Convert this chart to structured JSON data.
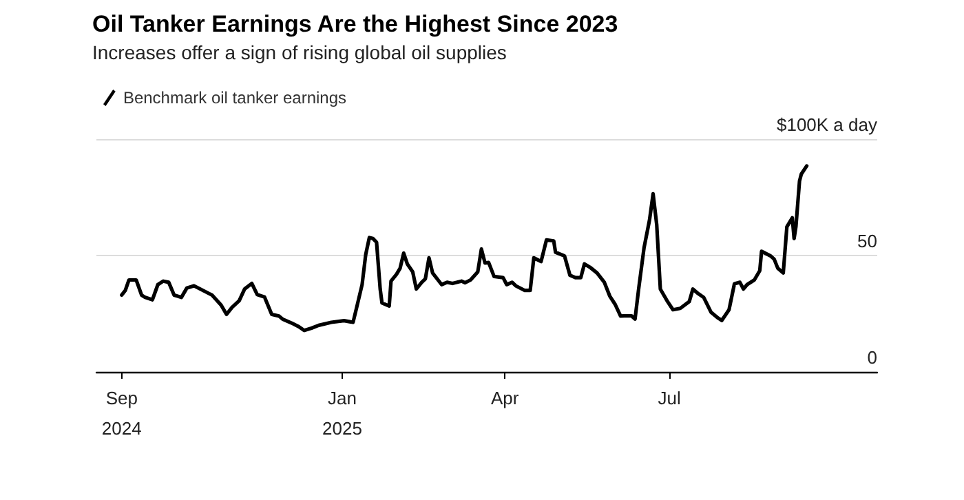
{
  "chart_data": {
    "type": "line",
    "title": "Oil Tanker Earnings Are the Highest Since 2023",
    "subtitle": "Increases offer a sign of rising global oil supplies",
    "x": [
      "2024-09-01",
      "2024-09-03",
      "2024-09-05",
      "2024-09-09",
      "2024-09-12",
      "2024-09-14",
      "2024-09-18",
      "2024-09-21",
      "2024-09-24",
      "2024-09-27",
      "2024-09-30",
      "2024-10-04",
      "2024-10-07",
      "2024-10-11",
      "2024-10-16",
      "2024-10-21",
      "2024-10-26",
      "2024-10-29",
      "2024-11-01",
      "2024-11-05",
      "2024-11-08",
      "2024-11-12",
      "2024-11-15",
      "2024-11-19",
      "2024-11-23",
      "2024-11-27",
      "2024-11-29",
      "2024-12-04",
      "2024-12-08",
      "2024-12-11",
      "2024-12-15",
      "2024-12-19",
      "2024-12-26",
      "2025-01-02",
      "2025-01-07",
      "2025-01-09",
      "2025-01-12",
      "2025-01-14",
      "2025-01-16",
      "2025-01-18",
      "2025-01-20",
      "2025-01-22",
      "2025-01-23",
      "2025-01-27",
      "2025-01-28",
      "2025-01-31",
      "2025-02-02",
      "2025-02-04",
      "2025-02-06",
      "2025-02-09",
      "2025-02-11",
      "2025-02-14",
      "2025-02-16",
      "2025-02-18",
      "2025-02-20",
      "2025-02-25",
      "2025-02-28",
      "2025-03-03",
      "2025-03-08",
      "2025-03-10",
      "2025-03-13",
      "2025-03-17",
      "2025-03-19",
      "2025-03-21",
      "2025-03-23",
      "2025-03-26",
      "2025-03-31",
      "2025-04-02",
      "2025-04-05",
      "2025-04-07",
      "2025-04-12",
      "2025-04-15",
      "2025-04-17",
      "2025-04-20",
      "2025-04-21",
      "2025-04-24",
      "2025-04-28",
      "2025-04-29",
      "2025-05-04",
      "2025-05-07",
      "2025-05-10",
      "2025-05-13",
      "2025-05-15",
      "2025-05-18",
      "2025-05-22",
      "2025-05-26",
      "2025-05-29",
      "2025-06-01",
      "2025-06-04",
      "2025-06-06",
      "2025-06-10",
      "2025-06-12",
      "2025-06-14",
      "2025-06-17",
      "2025-06-20",
      "2025-06-22",
      "2025-06-24",
      "2025-06-26",
      "2025-06-30",
      "2025-07-03",
      "2025-07-07",
      "2025-07-12",
      "2025-07-14",
      "2025-07-17",
      "2025-07-20",
      "2025-07-24",
      "2025-07-28",
      "2025-07-30",
      "2025-08-03",
      "2025-08-06",
      "2025-08-09",
      "2025-08-11",
      "2025-08-13",
      "2025-08-17",
      "2025-08-20",
      "2025-08-21",
      "2025-08-26",
      "2025-08-28",
      "2025-08-30",
      "2025-09-02",
      "2025-09-04",
      "2025-09-07",
      "2025-09-08",
      "2025-09-09",
      "2025-09-11",
      "2025-09-12",
      "2025-09-15"
    ],
    "series": [
      {
        "name": "Benchmark oil tanker earnings",
        "color": "#000000",
        "values": [
          33,
          35,
          39.5,
          39.5,
          33,
          32,
          31,
          37.5,
          39,
          38.5,
          33,
          32,
          36,
          37,
          35,
          33,
          28.7,
          24.7,
          27.7,
          30.6,
          35.6,
          38,
          33.2,
          32.2,
          24.7,
          24,
          22.7,
          21,
          19.4,
          17.8,
          18.8,
          20,
          21.3,
          22,
          21.3,
          27.7,
          37.5,
          50.4,
          57.7,
          57.3,
          55.7,
          35.6,
          29.6,
          28.3,
          39,
          41.9,
          44.5,
          51,
          46.4,
          43,
          35.6,
          38.5,
          40,
          49,
          42.5,
          37.5,
          38.5,
          38,
          39,
          38.3,
          39.5,
          43,
          52.8,
          46.8,
          47,
          41,
          40.5,
          37.5,
          38.5,
          37,
          35,
          35,
          49,
          47.8,
          47.4,
          56.7,
          56.3,
          51.4,
          49.8,
          41.5,
          40.5,
          40.5,
          46.4,
          45,
          42.5,
          38.5,
          32.6,
          29,
          24,
          24.1,
          24.1,
          22.7,
          35.6,
          53.4,
          65.2,
          76.5,
          63.2,
          35.6,
          30.2,
          26.7,
          27.3,
          30.2,
          35.6,
          33.6,
          32,
          25.7,
          23.1,
          22.1,
          26.7,
          37.9,
          38.5,
          35.6,
          37.5,
          39.5,
          43.5,
          51.8,
          49.8,
          48.4,
          44.5,
          42.5,
          62.3,
          66.2,
          57.3,
          62.3,
          82,
          85,
          88.5
        ]
      }
    ],
    "xlim": [
      "2024-08-18",
      "2025-10-24"
    ],
    "xticks": [
      {
        "value": "2024-09-01",
        "label": "Sep\n2024"
      },
      {
        "value": "2025-01-01",
        "label": "Jan\n2025"
      },
      {
        "value": "2025-04-01",
        "label": "Apr"
      },
      {
        "value": "2025-07-01",
        "label": "Jul"
      }
    ],
    "ylim": [
      0,
      100
    ],
    "yticks": [
      0,
      50,
      {
        "value": 100,
        "label": "$100K a day"
      }
    ],
    "grid": "y",
    "legend": "top left",
    "marker": "none",
    "line_style": "solid"
  }
}
